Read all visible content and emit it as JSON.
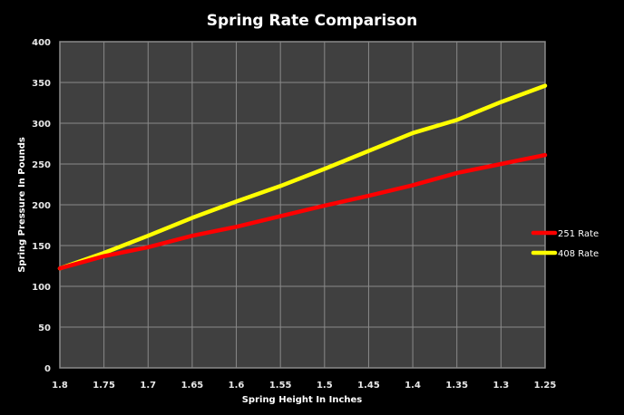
{
  "chart_data": {
    "type": "line",
    "title": "Spring Rate Comparison",
    "xlabel": "Spring Height In Inches",
    "ylabel": "Spring Pressure In Pounds",
    "x": [
      "1.8",
      "1.75",
      "1.7",
      "1.65",
      "1.6",
      "1.55",
      "1.5",
      "1.45",
      "1.4",
      "1.35",
      "1.3",
      "1.25"
    ],
    "ylim": [
      0,
      400
    ],
    "yticks": [
      0,
      50,
      100,
      150,
      200,
      250,
      300,
      350,
      400
    ],
    "grid": true,
    "legend_position": "right",
    "series": [
      {
        "name": "251 Rate",
        "color": "#ff0000",
        "values": [
          122,
          137,
          148,
          162,
          173,
          186,
          199,
          211,
          224,
          239,
          250,
          261
        ]
      },
      {
        "name": "408 Rate",
        "color": "#ffff00",
        "values": [
          122,
          141,
          162,
          184,
          204,
          223,
          244,
          266,
          288,
          304,
          326,
          346
        ]
      }
    ]
  },
  "colors": {
    "background": "#000000",
    "plot_background": "#404040",
    "grid": "#8a8a8a"
  }
}
